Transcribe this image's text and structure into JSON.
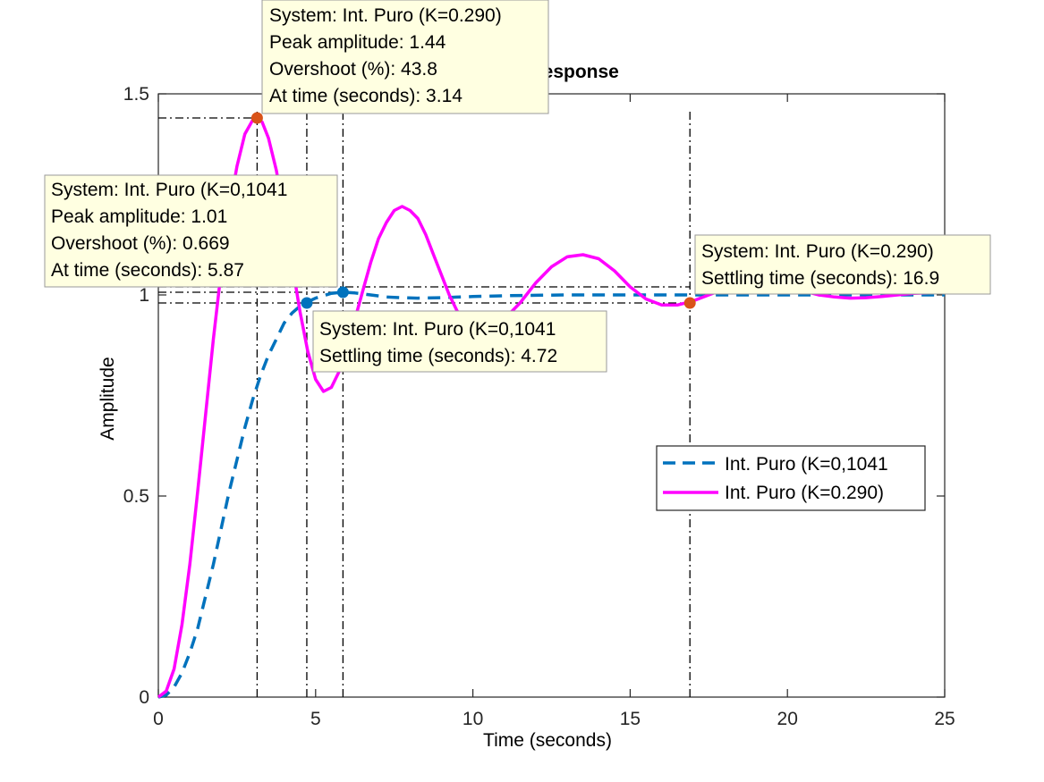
{
  "chart_data": {
    "type": "line",
    "title": "Step Response",
    "xlabel": "Time (seconds)",
    "ylabel": "Amplitude",
    "xlim": [
      0,
      25
    ],
    "ylim": [
      0,
      1.5
    ],
    "xticks": [
      0,
      5,
      10,
      15,
      20,
      25
    ],
    "xtick_labels": [
      "0",
      "5",
      "10",
      "15",
      "20",
      "25"
    ],
    "yticks": [
      0,
      0.5,
      1,
      1.5
    ],
    "ytick_labels": [
      "0",
      "0.5",
      "1",
      "1.5"
    ],
    "grid": false,
    "legend_position": "right",
    "series": [
      {
        "name": "Int. Puro (K=0,1041",
        "color": "#0072BD",
        "dash": "dashed",
        "x": [
          0,
          0.25,
          0.5,
          0.75,
          1.0,
          1.25,
          1.5,
          1.75,
          2.0,
          2.25,
          2.5,
          2.75,
          3.0,
          3.25,
          3.5,
          3.75,
          4.0,
          4.25,
          4.5,
          4.75,
          5.0,
          5.25,
          5.5,
          5.87,
          6.25,
          6.75,
          7.25,
          7.75,
          8.25,
          9.0,
          10.0,
          11.0,
          12.0,
          13.0,
          14.0,
          15.0,
          16.0,
          17.0,
          18.0,
          19.0,
          20.0,
          21.0,
          22.0,
          23.0,
          24.0,
          25.0
        ],
        "y": [
          0,
          0.005,
          0.025,
          0.06,
          0.11,
          0.17,
          0.25,
          0.33,
          0.42,
          0.51,
          0.59,
          0.67,
          0.74,
          0.8,
          0.85,
          0.89,
          0.93,
          0.955,
          0.972,
          0.983,
          0.992,
          0.998,
          1.004,
          1.007,
          1.005,
          1.0,
          0.995,
          0.993,
          0.992,
          0.993,
          0.996,
          0.998,
          0.999,
          1.0,
          1.0,
          1.0,
          1.0,
          1.0,
          1.0,
          1.0,
          1.0,
          1.0,
          1.0,
          1.0,
          1.0,
          1.0
        ]
      },
      {
        "name": "Int. Puro (K=0.290)",
        "color": "#FF00FF",
        "dash": "solid",
        "x": [
          0,
          0.25,
          0.5,
          0.75,
          1.0,
          1.25,
          1.5,
          1.75,
          2.0,
          2.25,
          2.5,
          2.75,
          3.0,
          3.14,
          3.3,
          3.5,
          3.75,
          4.0,
          4.25,
          4.5,
          4.75,
          5.0,
          5.25,
          5.5,
          5.75,
          6.0,
          6.25,
          6.5,
          6.75,
          7.0,
          7.25,
          7.5,
          7.75,
          8.0,
          8.25,
          8.5,
          8.75,
          9.0,
          9.25,
          9.5,
          9.75,
          10.0,
          10.5,
          11.0,
          11.5,
          12.0,
          12.5,
          13.0,
          13.5,
          14.0,
          14.5,
          15.0,
          15.5,
          16.0,
          16.5,
          17.0,
          17.5,
          18.0,
          18.5,
          19.0,
          19.5,
          20.0,
          20.5,
          21.0,
          21.5,
          22.0,
          22.5,
          23.0,
          23.5,
          24.0,
          24.5,
          25.0
        ],
        "y": [
          0,
          0.015,
          0.07,
          0.18,
          0.33,
          0.51,
          0.7,
          0.89,
          1.06,
          1.21,
          1.32,
          1.4,
          1.435,
          1.44,
          1.43,
          1.39,
          1.31,
          1.2,
          1.08,
          0.96,
          0.86,
          0.79,
          0.76,
          0.77,
          0.81,
          0.87,
          0.94,
          1.01,
          1.08,
          1.14,
          1.18,
          1.21,
          1.22,
          1.21,
          1.19,
          1.15,
          1.1,
          1.05,
          1.0,
          0.96,
          0.94,
          0.93,
          0.92,
          0.94,
          0.98,
          1.03,
          1.07,
          1.095,
          1.1,
          1.09,
          1.06,
          1.02,
          0.99,
          0.975,
          0.975,
          0.985,
          1.0,
          1.015,
          1.025,
          1.03,
          1.028,
          1.02,
          1.01,
          1.0,
          0.995,
          0.992,
          0.993,
          0.996,
          1.0,
          1.004,
          1.005,
          1.005
        ]
      }
    ],
    "markers": [
      {
        "series": 1,
        "x": 3.14,
        "y": 1.44,
        "color": "#D95319"
      },
      {
        "series": 0,
        "x": 5.87,
        "y": 1.0067,
        "color": "#0072BD"
      },
      {
        "series": 0,
        "x": 4.72,
        "y": 0.98,
        "color": "#0072BD"
      },
      {
        "series": 1,
        "x": 16.9,
        "y": 0.98,
        "color": "#D95319"
      }
    ],
    "reference_lines": {
      "vertical": [
        3.14,
        4.72,
        5.87,
        16.9
      ],
      "horizontal": [
        1.44,
        0.98,
        1.02,
        1.0067
      ]
    },
    "annotations": [
      {
        "lines": [
          "System: Int. Puro (K=0.290)",
          "Peak amplitude: 1.44",
          "Overshoot (%): 43.8",
          "At time (seconds): 3.14"
        ]
      },
      {
        "lines": [
          "System: Int. Puro (K=0,1041",
          "Peak amplitude: 1.01",
          "Overshoot (%): 0.669",
          "At time (seconds): 5.87"
        ]
      },
      {
        "lines": [
          "System: Int. Puro (K=0.290)",
          "Settling time (seconds): 16.9"
        ]
      },
      {
        "lines": [
          "System: Int. Puro (K=0,1041",
          "Settling time (seconds): 4.72"
        ]
      }
    ]
  }
}
